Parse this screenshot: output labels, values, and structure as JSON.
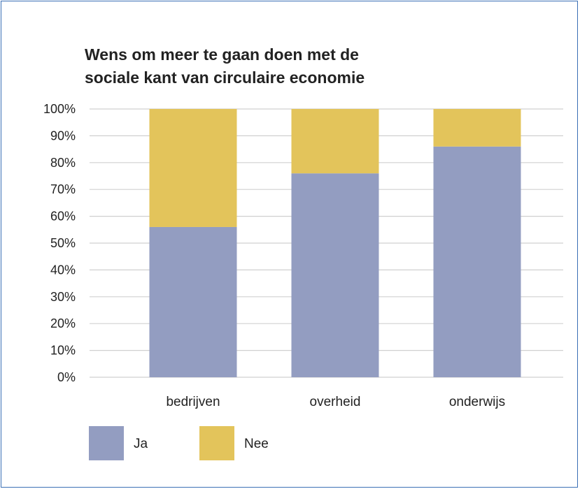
{
  "chart_data": {
    "type": "bar",
    "stacked": true,
    "title_lines": [
      "Wens om meer te gaan doen met de",
      "sociale kant van circulaire economie"
    ],
    "categories": [
      "bedrijven",
      "overheid",
      "onderwijs"
    ],
    "series": [
      {
        "name": "Ja",
        "values": [
          56,
          76,
          86
        ],
        "color": "#939dc1"
      },
      {
        "name": "Nee",
        "values": [
          44,
          24,
          14
        ],
        "color": "#e3c45b"
      }
    ],
    "yticks": [
      "0%",
      "10%",
      "20%",
      "30%",
      "40%",
      "50%",
      "60%",
      "70%",
      "80%",
      "90%",
      "100%"
    ],
    "ylim": [
      0,
      100
    ],
    "grid": true,
    "legend_position": "bottom-left",
    "frame_color": "#3a6fb5",
    "grid_color": "#d0d0d0"
  }
}
